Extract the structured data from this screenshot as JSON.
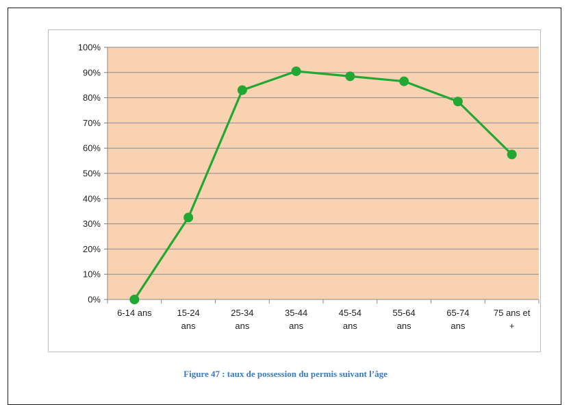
{
  "caption": "Figure 47 : taux de possession du permis suivant l’âge",
  "chart_data": {
    "type": "line",
    "title": "",
    "xlabel": "",
    "ylabel": "",
    "categories": [
      [
        "6-14 ans"
      ],
      [
        "15-24",
        "ans"
      ],
      [
        "25-34",
        "ans"
      ],
      [
        "35-44",
        "ans"
      ],
      [
        "45-54",
        "ans"
      ],
      [
        "55-64",
        "ans"
      ],
      [
        "65-74",
        "ans"
      ],
      [
        "75 ans et",
        "+"
      ]
    ],
    "series": [
      {
        "values": [
          0,
          32.5,
          83,
          90.5,
          88.5,
          86.5,
          78.5,
          57.5
        ],
        "color": "#22a832"
      }
    ],
    "ylim": [
      0,
      100
    ],
    "yticks": [
      0,
      10,
      20,
      30,
      40,
      50,
      60,
      70,
      80,
      90,
      100
    ],
    "ytick_suffix": "%",
    "grid": true,
    "plot_background": "#f9d2b2",
    "gridline_color": "#8a8a8a"
  }
}
